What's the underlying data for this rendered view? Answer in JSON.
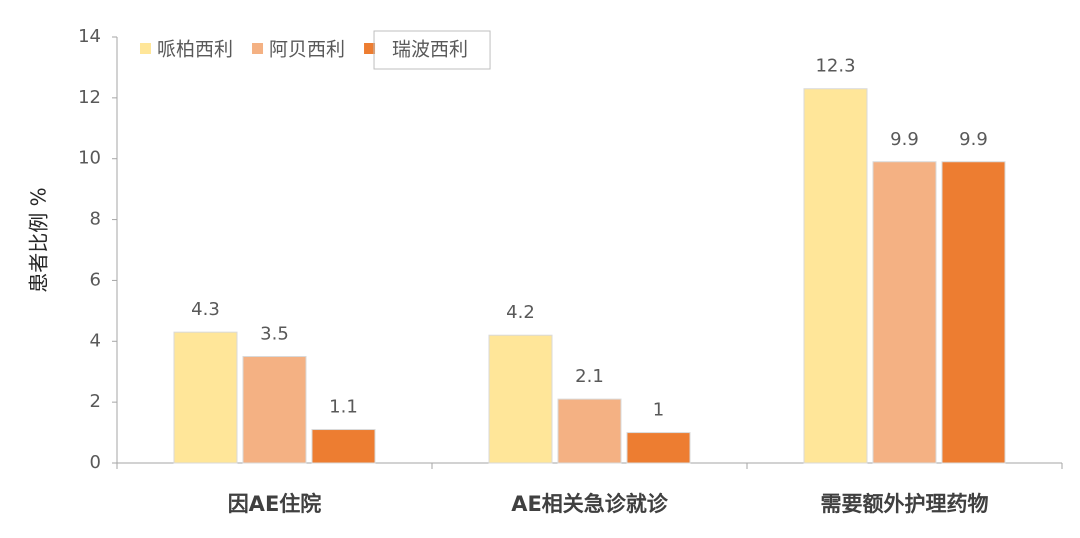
{
  "chart_data": {
    "type": "bar",
    "y_label": "患者比例 %",
    "categories": [
      "因AE住院",
      "AE相关急诊就诊",
      "需要额外护理药物"
    ],
    "series": [
      {
        "name": "哌柏西利",
        "color": "#ffe699",
        "values": [
          4.3,
          4.2,
          12.3
        ]
      },
      {
        "name": "阿贝西利",
        "color": "#f4b183",
        "values": [
          3.5,
          2.1,
          9.9
        ]
      },
      {
        "name": "瑞波西利",
        "color": "#ed7d31",
        "values": [
          1.1,
          1,
          9.9
        ]
      }
    ],
    "ylim": [
      0,
      14
    ],
    "yticks": [
      0,
      2,
      4,
      6,
      8,
      10,
      12,
      14
    ],
    "grid": false,
    "legend": "top-left"
  }
}
